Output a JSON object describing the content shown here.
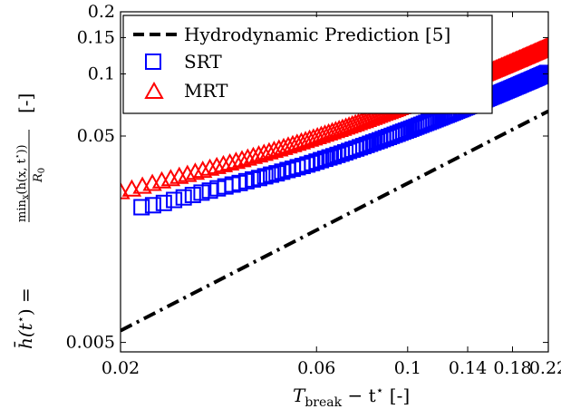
{
  "chart_data": {
    "type": "scatter",
    "xscale": "log",
    "yscale": "log",
    "xlim": [
      0.02,
      0.22
    ],
    "ylim": [
      0.0045,
      0.2
    ],
    "xticks": [
      {
        "value": 0.02,
        "label": "0.02"
      },
      {
        "value": 0.06,
        "label": "0.06"
      },
      {
        "value": 0.1,
        "label": "0.1"
      },
      {
        "value": 0.14,
        "label": "0.14"
      },
      {
        "value": 0.18,
        "label": "0.18"
      },
      {
        "value": 0.22,
        "label": "0.22"
      }
    ],
    "yticks": [
      {
        "value": 0.005,
        "label": "0.005"
      },
      {
        "value": 0.05,
        "label": "0.05"
      },
      {
        "value": 0.1,
        "label": "0.1"
      },
      {
        "value": 0.15,
        "label": "0.15"
      },
      {
        "value": 0.2,
        "label": "0.2"
      }
    ],
    "xlabel_parts": {
      "main": "T",
      "sub": "break",
      "rest": " − t",
      "sup": "⋆",
      "unit": " [-]"
    },
    "ylabel_parts": {
      "lhs": "h̄(t",
      "lhs_sup": "⋆",
      "lhs_close": ") =",
      "num_main": "min",
      "num_sub": "x",
      "num_rest": "(h(x, t",
      "num_sup": "⋆",
      "num_close": "))",
      "den_main": "R",
      "den_sub": "0",
      "unit": "[-]"
    },
    "grid": false,
    "legend_position": "top",
    "series": [
      {
        "name": "Hydrodynamic Prediction [5]",
        "kind": "line",
        "style": "dash-dot",
        "color": "#000000",
        "x": [
          0.02,
          0.22
        ],
        "y": [
          0.0057,
          0.066
        ]
      },
      {
        "name": "SRT",
        "kind": "markers",
        "marker": "square",
        "color": "#0000ff",
        "x": [
          0.0225,
          0.024,
          0.0255,
          0.027,
          0.0285,
          0.03,
          0.0315,
          0.033,
          0.0345,
          0.036,
          0.0375,
          0.039,
          0.0405,
          0.042,
          0.0435,
          0.045,
          0.0465,
          0.048,
          0.0495,
          0.051,
          0.0525,
          0.054,
          0.0555,
          0.057,
          0.0585,
          0.06,
          0.0615,
          0.063,
          0.0645,
          0.066,
          0.0675,
          0.069,
          0.0705,
          0.072,
          0.0735,
          0.075,
          0.0765,
          0.078,
          0.0795,
          0.081,
          0.0825,
          0.084,
          0.0855,
          0.087,
          0.0885,
          0.09,
          0.0915,
          0.093,
          0.0945,
          0.096,
          0.0975,
          0.099,
          0.1005,
          0.102,
          0.1035,
          0.105,
          0.1065,
          0.108,
          0.1095,
          0.111,
          0.1125,
          0.114,
          0.1155,
          0.117,
          0.1185,
          0.12,
          0.1215,
          0.123,
          0.1245,
          0.126,
          0.1275,
          0.129,
          0.1305,
          0.132,
          0.1335,
          0.135,
          0.1365,
          0.138,
          0.1395,
          0.141,
          0.1425,
          0.144,
          0.1455,
          0.147,
          0.1485,
          0.15,
          0.1515,
          0.153,
          0.1545,
          0.156,
          0.1575,
          0.159,
          0.1605,
          0.162,
          0.1635,
          0.165,
          0.1665,
          0.168,
          0.1695,
          0.171,
          0.1725,
          0.174,
          0.1755,
          0.177,
          0.1785,
          0.18,
          0.1815,
          0.183,
          0.1845,
          0.186,
          0.1875,
          0.189,
          0.1905,
          0.192,
          0.1935,
          0.195,
          0.1965,
          0.198,
          0.1995,
          0.201,
          0.2025,
          0.204,
          0.2055,
          0.207,
          0.2085,
          0.21,
          0.2115,
          0.213,
          0.2145,
          0.216,
          0.2175,
          0.219
        ],
        "y": [
          0.0226,
          0.0231,
          0.0237,
          0.0245,
          0.0252,
          0.0259,
          0.0266,
          0.0272,
          0.0279,
          0.0285,
          0.0291,
          0.0296,
          0.0302,
          0.0308,
          0.0313,
          0.0319,
          0.0325,
          0.033,
          0.0336,
          0.0342,
          0.0347,
          0.0353,
          0.0358,
          0.0364,
          0.037,
          0.0376,
          0.0382,
          0.0388,
          0.0394,
          0.0399,
          0.0405,
          0.0411,
          0.0417,
          0.0423,
          0.0429,
          0.0435,
          0.0441,
          0.0447,
          0.0453,
          0.0459,
          0.0465,
          0.0471,
          0.0477,
          0.0483,
          0.0489,
          0.0495,
          0.0501,
          0.0507,
          0.0513,
          0.0519,
          0.0525,
          0.0531,
          0.0537,
          0.0543,
          0.0549,
          0.0555,
          0.0561,
          0.0567,
          0.0573,
          0.0579,
          0.0585,
          0.0591,
          0.0597,
          0.0603,
          0.0609,
          0.0615,
          0.0621,
          0.0627,
          0.0633,
          0.0639,
          0.0645,
          0.0651,
          0.0657,
          0.0663,
          0.0669,
          0.0675,
          0.0681,
          0.0687,
          0.0693,
          0.0699,
          0.0705,
          0.0711,
          0.0717,
          0.0723,
          0.0729,
          0.0735,
          0.0741,
          0.0747,
          0.0753,
          0.0759,
          0.0765,
          0.0771,
          0.0777,
          0.0783,
          0.0789,
          0.0795,
          0.0801,
          0.0807,
          0.0813,
          0.0819,
          0.0825,
          0.0831,
          0.0837,
          0.0843,
          0.0849,
          0.0855,
          0.0861,
          0.0867,
          0.0873,
          0.0879,
          0.0885,
          0.0891,
          0.0897,
          0.0903,
          0.0909,
          0.0915,
          0.0921,
          0.0927,
          0.0933,
          0.0939,
          0.0945,
          0.0951,
          0.0957,
          0.0963,
          0.0969,
          0.0975,
          0.0981,
          0.0987,
          0.0993,
          0.0999,
          0.1005,
          0.1011
        ]
      },
      {
        "name": "MRT",
        "kind": "markers",
        "marker": "triangle",
        "color": "#ff0000",
        "x": [
          0.02,
          0.0213,
          0.0226,
          0.0239,
          0.0252,
          0.0265,
          0.0278,
          0.0291,
          0.0304,
          0.0317,
          0.033,
          0.0343,
          0.0356,
          0.0369,
          0.0382,
          0.0395,
          0.0408,
          0.0421,
          0.0434,
          0.0447,
          0.046,
          0.0473,
          0.0486,
          0.0499,
          0.0512,
          0.0525,
          0.0538,
          0.0551,
          0.0564,
          0.0577,
          0.059,
          0.0603,
          0.0616,
          0.0629,
          0.0642,
          0.0655,
          0.0668,
          0.0681,
          0.0694,
          0.0707,
          0.072,
          0.0733,
          0.0746,
          0.0759,
          0.0772,
          0.0785,
          0.0798,
          0.0811,
          0.0824,
          0.0837,
          0.085,
          0.0863,
          0.0876,
          0.0889,
          0.0902,
          0.0915,
          0.0928,
          0.0941,
          0.0954,
          0.0967,
          0.098,
          0.0993,
          0.1006,
          0.1019,
          0.1032,
          0.1045,
          0.1058,
          0.1071,
          0.1084,
          0.1097,
          0.111,
          0.1123,
          0.1136,
          0.1149,
          0.1162,
          0.1175,
          0.1188,
          0.1201,
          0.1214,
          0.1227,
          0.124,
          0.1253,
          0.1266,
          0.1279,
          0.1292,
          0.1305,
          0.1318,
          0.1331,
          0.1344,
          0.1357,
          0.137,
          0.1383,
          0.1396,
          0.1409,
          0.1422,
          0.1435,
          0.1448,
          0.1461,
          0.1474,
          0.1487,
          0.15,
          0.1513,
          0.1526,
          0.1539,
          0.1552,
          0.1565,
          0.1578,
          0.1591,
          0.1604,
          0.1617,
          0.163,
          0.1643,
          0.1656,
          0.1669,
          0.1682,
          0.1695,
          0.1708,
          0.1721,
          0.1734,
          0.1747,
          0.176,
          0.1773,
          0.1786,
          0.1799,
          0.1812,
          0.1825,
          0.1838,
          0.1851,
          0.1864,
          0.1877,
          0.189,
          0.1903,
          0.1916,
          0.1929,
          0.1942,
          0.1955,
          0.1968,
          0.1981,
          0.1994,
          0.2007,
          0.202,
          0.2033,
          0.2046,
          0.2059,
          0.2072,
          0.2085,
          0.2098,
          0.2111,
          0.2124,
          0.2137,
          0.215,
          0.2163,
          0.2176,
          0.2189
        ],
        "y": [
          0.0268,
          0.0276,
          0.0285,
          0.0294,
          0.0302,
          0.031,
          0.0318,
          0.0325,
          0.0333,
          0.034,
          0.0348,
          0.0355,
          0.0362,
          0.0369,
          0.0376,
          0.0383,
          0.039,
          0.0397,
          0.0404,
          0.0411,
          0.0418,
          0.0425,
          0.0432,
          0.0439,
          0.0446,
          0.0453,
          0.046,
          0.0467,
          0.0474,
          0.0481,
          0.0488,
          0.0495,
          0.0502,
          0.0509,
          0.0516,
          0.0523,
          0.053,
          0.0537,
          0.0544,
          0.0551,
          0.0558,
          0.0565,
          0.0572,
          0.0579,
          0.0586,
          0.0593,
          0.06,
          0.0607,
          0.0614,
          0.0621,
          0.0628,
          0.0635,
          0.0642,
          0.0649,
          0.0656,
          0.0663,
          0.067,
          0.0677,
          0.0684,
          0.0691,
          0.0698,
          0.0705,
          0.0712,
          0.0719,
          0.0726,
          0.0733,
          0.074,
          0.0747,
          0.0754,
          0.0761,
          0.0768,
          0.0775,
          0.0782,
          0.0789,
          0.0796,
          0.0803,
          0.081,
          0.0817,
          0.0824,
          0.0831,
          0.0838,
          0.0845,
          0.0852,
          0.0859,
          0.0866,
          0.0873,
          0.088,
          0.0887,
          0.0894,
          0.0901,
          0.0908,
          0.0915,
          0.0922,
          0.0929,
          0.0936,
          0.0943,
          0.095,
          0.0957,
          0.0964,
          0.0971,
          0.0978,
          0.0985,
          0.0992,
          0.0999,
          0.1006,
          0.1013,
          0.102,
          0.1027,
          0.1034,
          0.1041,
          0.1048,
          0.1055,
          0.1062,
          0.1069,
          0.1076,
          0.1083,
          0.109,
          0.1097,
          0.1104,
          0.1111,
          0.1118,
          0.1125,
          0.1132,
          0.1139,
          0.1146,
          0.1153,
          0.116,
          0.1167,
          0.1174,
          0.1181,
          0.1188,
          0.1195,
          0.1202,
          0.1209,
          0.1216,
          0.1223,
          0.123,
          0.1237,
          0.1244,
          0.1251,
          0.1258,
          0.1265,
          0.1272,
          0.1279,
          0.1286,
          0.1293,
          0.13,
          0.1307,
          0.1314,
          0.1321,
          0.1328,
          0.1335,
          0.1342,
          0.1349
        ]
      }
    ]
  }
}
